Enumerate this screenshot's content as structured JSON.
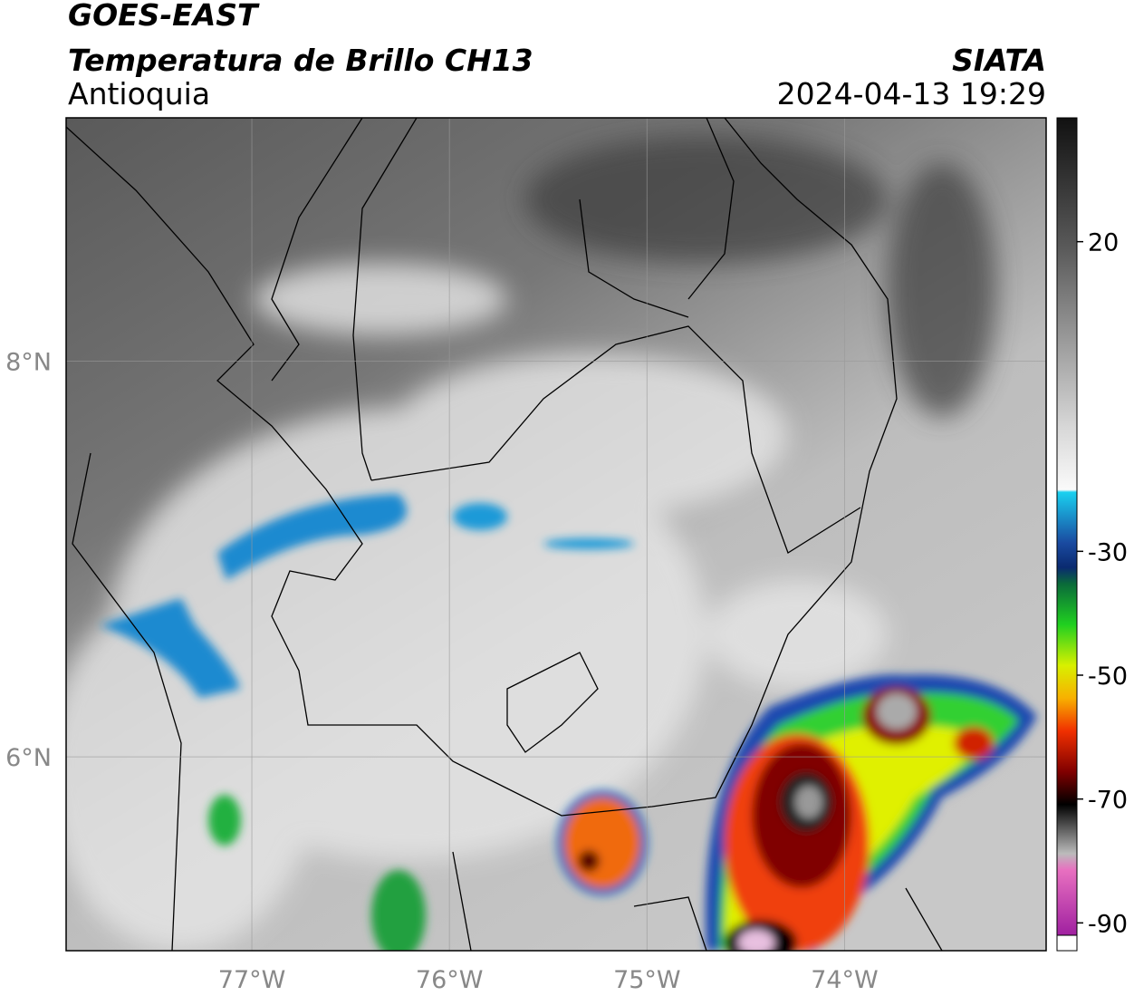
{
  "header": {
    "satellite": "GOES-EAST",
    "product": "Temperatura de Brillo CH13",
    "region": "Antioquia",
    "source": "SIATA",
    "datetime": "2024-04-13 19:29"
  },
  "map": {
    "lon_range": [
      -77.94,
      -72.98
    ],
    "lat_range": [
      5.02,
      9.23
    ],
    "lat_ticks": [
      {
        "value": 8,
        "label": "8°N"
      },
      {
        "value": 6,
        "label": "6°N"
      }
    ],
    "lon_ticks": [
      {
        "value": -77,
        "label": "77°W"
      },
      {
        "value": -76,
        "label": "76°W"
      },
      {
        "value": -75,
        "label": "75°W"
      },
      {
        "value": -74,
        "label": "74°W"
      }
    ]
  },
  "colorbar": {
    "range": [
      -92,
      40
    ],
    "ticks": [
      20,
      -30,
      -50,
      -70,
      -90
    ]
  }
}
